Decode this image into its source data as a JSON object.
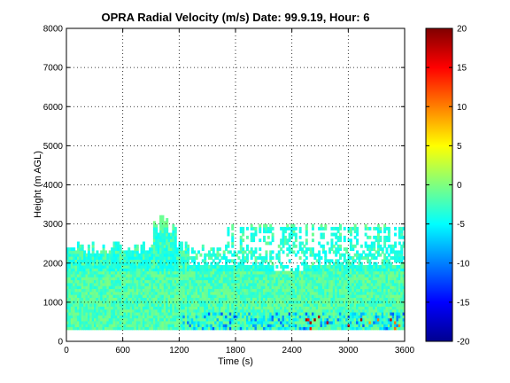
{
  "chart_data": {
    "type": "heatmap",
    "title": "OPRA Radial Velocity (m/s)  Date: 99.9.19, Hour: 6",
    "xlabel": "Time (s)",
    "ylabel": "Height (m AGL)",
    "xlim": [
      0,
      3600
    ],
    "ylim": [
      0,
      8000
    ],
    "xticks": [
      "0",
      "600",
      "1200",
      "1800",
      "2400",
      "3000",
      "3600"
    ],
    "yticks": [
      "0",
      "1000",
      "2000",
      "3000",
      "4000",
      "5000",
      "6000",
      "7000",
      "8000"
    ],
    "grid": true,
    "colorbar": {
      "range": [
        -20,
        20
      ],
      "ticks": [
        "20",
        "15",
        "10",
        "5",
        "0",
        "-5",
        "-10",
        "-15",
        "-20"
      ],
      "colormap": "jet"
    },
    "regions": [
      {
        "x": [
          0,
          3600
        ],
        "y": [
          300,
          1800
        ],
        "value": -2,
        "note": "lower layer mix of green and cyan"
      },
      {
        "x": [
          0,
          3600
        ],
        "y": [
          1800,
          2700
        ],
        "value": -4,
        "note": "patchy cyan layer with gaps"
      },
      {
        "x": [
          0,
          3600
        ],
        "y": [
          2700,
          3300
        ],
        "value": -3,
        "note": "ragged top of echo"
      },
      {
        "x": [
          1200,
          3600
        ],
        "y": [
          300,
          700
        ],
        "value": -8,
        "note": "blue streaks near ground, occasional red/yellow"
      }
    ]
  }
}
